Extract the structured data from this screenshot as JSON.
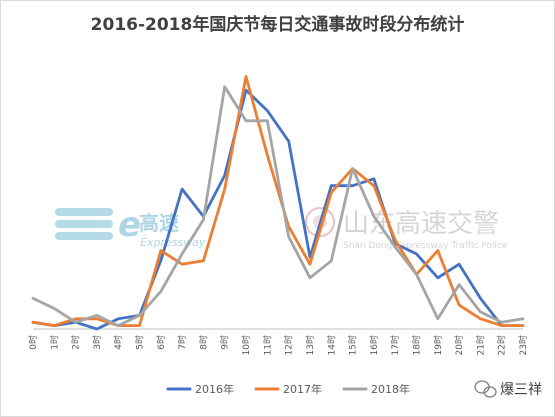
{
  "chart_data": {
    "type": "line",
    "title": "2016-2018年国庆节每日交通事故时段分布统计",
    "categories": [
      "0时",
      "1时",
      "2时",
      "3时",
      "4时",
      "5时",
      "6时",
      "7时",
      "8时",
      "9时",
      "10时",
      "11时",
      "12时",
      "13时",
      "14时",
      "15时",
      "16时",
      "17时",
      "18时",
      "19时",
      "20时",
      "21时",
      "22时",
      "23时"
    ],
    "series": [
      {
        "name": "2016年",
        "color": "#4472c4",
        "values": [
          2,
          1,
          2,
          0,
          3,
          4,
          20,
          41,
          33,
          45,
          70,
          64,
          55,
          21,
          42,
          42,
          44,
          25,
          22,
          15,
          19,
          9,
          1,
          1
        ]
      },
      {
        "name": "2017年",
        "color": "#ed7d31",
        "values": [
          2,
          1,
          3,
          3,
          1,
          1,
          23,
          19,
          20,
          41,
          74,
          51,
          30,
          19,
          40,
          47,
          42,
          26,
          16,
          23,
          7,
          3,
          1,
          1
        ]
      },
      {
        "name": "2018年",
        "color": "#a5a5a5",
        "values": [
          9,
          6,
          2,
          4,
          1,
          4,
          11,
          22,
          32,
          71,
          61,
          61,
          27,
          15,
          20,
          47,
          33,
          24,
          16,
          3,
          13,
          5,
          2,
          3
        ]
      }
    ],
    "ylim": [
      0,
      80
    ],
    "grid": false,
    "legend": "bottom"
  },
  "watermarks": {
    "left_brand": "高速",
    "left_sub": "Expressway",
    "center_brand": "山东高速交警",
    "center_sub": "Shan Dong Expressway Traffic Police"
  },
  "footer": {
    "account_name": "爆三祥"
  }
}
